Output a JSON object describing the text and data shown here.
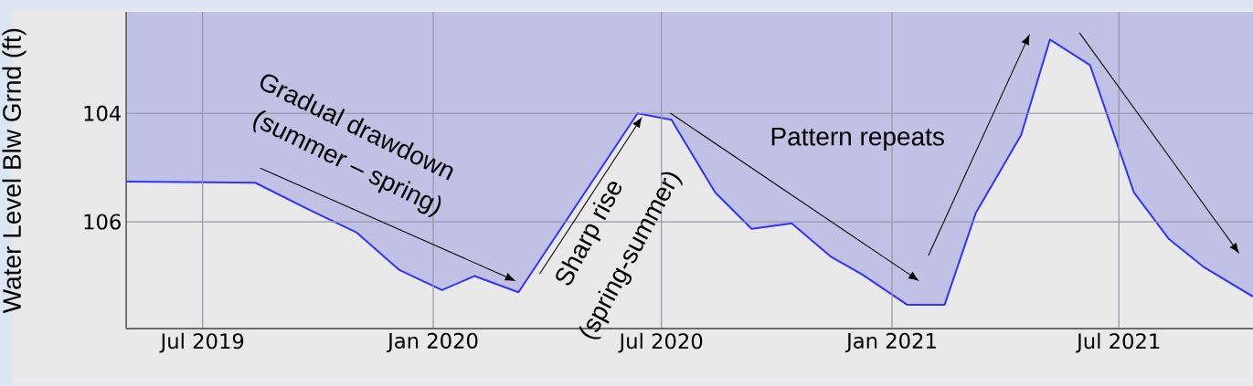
{
  "chart_data": {
    "type": "area",
    "ylabel": "Water Level Blw Grnd (ft)",
    "x": [
      "2019-05-01",
      "2019-08-12",
      "2019-09-24",
      "2019-11-01",
      "2019-12-05",
      "2020-01-08",
      "2020-02-03",
      "2020-03-09",
      "2020-06-12",
      "2020-07-09",
      "2020-08-13",
      "2020-09-11",
      "2020-10-13",
      "2020-11-13",
      "2020-12-08",
      "2021-01-13",
      "2021-02-12",
      "2021-03-09",
      "2021-04-14",
      "2021-05-07",
      "2021-06-08",
      "2021-07-13",
      "2021-08-10",
      "2021-09-07",
      "2021-10-16"
    ],
    "series": [
      {
        "color": "#3333ff",
        "values": [
          105.26,
          105.28,
          105.78,
          106.2,
          106.89,
          107.26,
          107.0,
          107.3,
          104.0,
          104.12,
          105.46,
          106.13,
          106.03,
          106.64,
          106.97,
          107.53,
          107.53,
          105.83,
          104.4,
          102.64,
          103.11,
          105.46,
          106.32,
          106.84,
          107.38
        ]
      }
    ],
    "xlim": [
      "2019-05-01",
      "2021-10-16"
    ],
    "xticks": [
      {
        "value": "2019-07-01",
        "label": "Jul 2019"
      },
      {
        "value": "2020-01-01",
        "label": "Jan 2020"
      },
      {
        "value": "2020-07-01",
        "label": "Jul 2020"
      },
      {
        "value": "2021-01-01",
        "label": "Jan 2021"
      },
      {
        "value": "2021-07-01",
        "label": "Jul 2021"
      }
    ],
    "ylim": [
      107.97,
      102.13
    ],
    "yticks": [
      104,
      106
    ],
    "grid": true,
    "annotations": [
      "Gradual drawdown",
      "(summer – spring)",
      "Sharp rise",
      "(spring-summer)",
      "Pattern repeats"
    ]
  }
}
